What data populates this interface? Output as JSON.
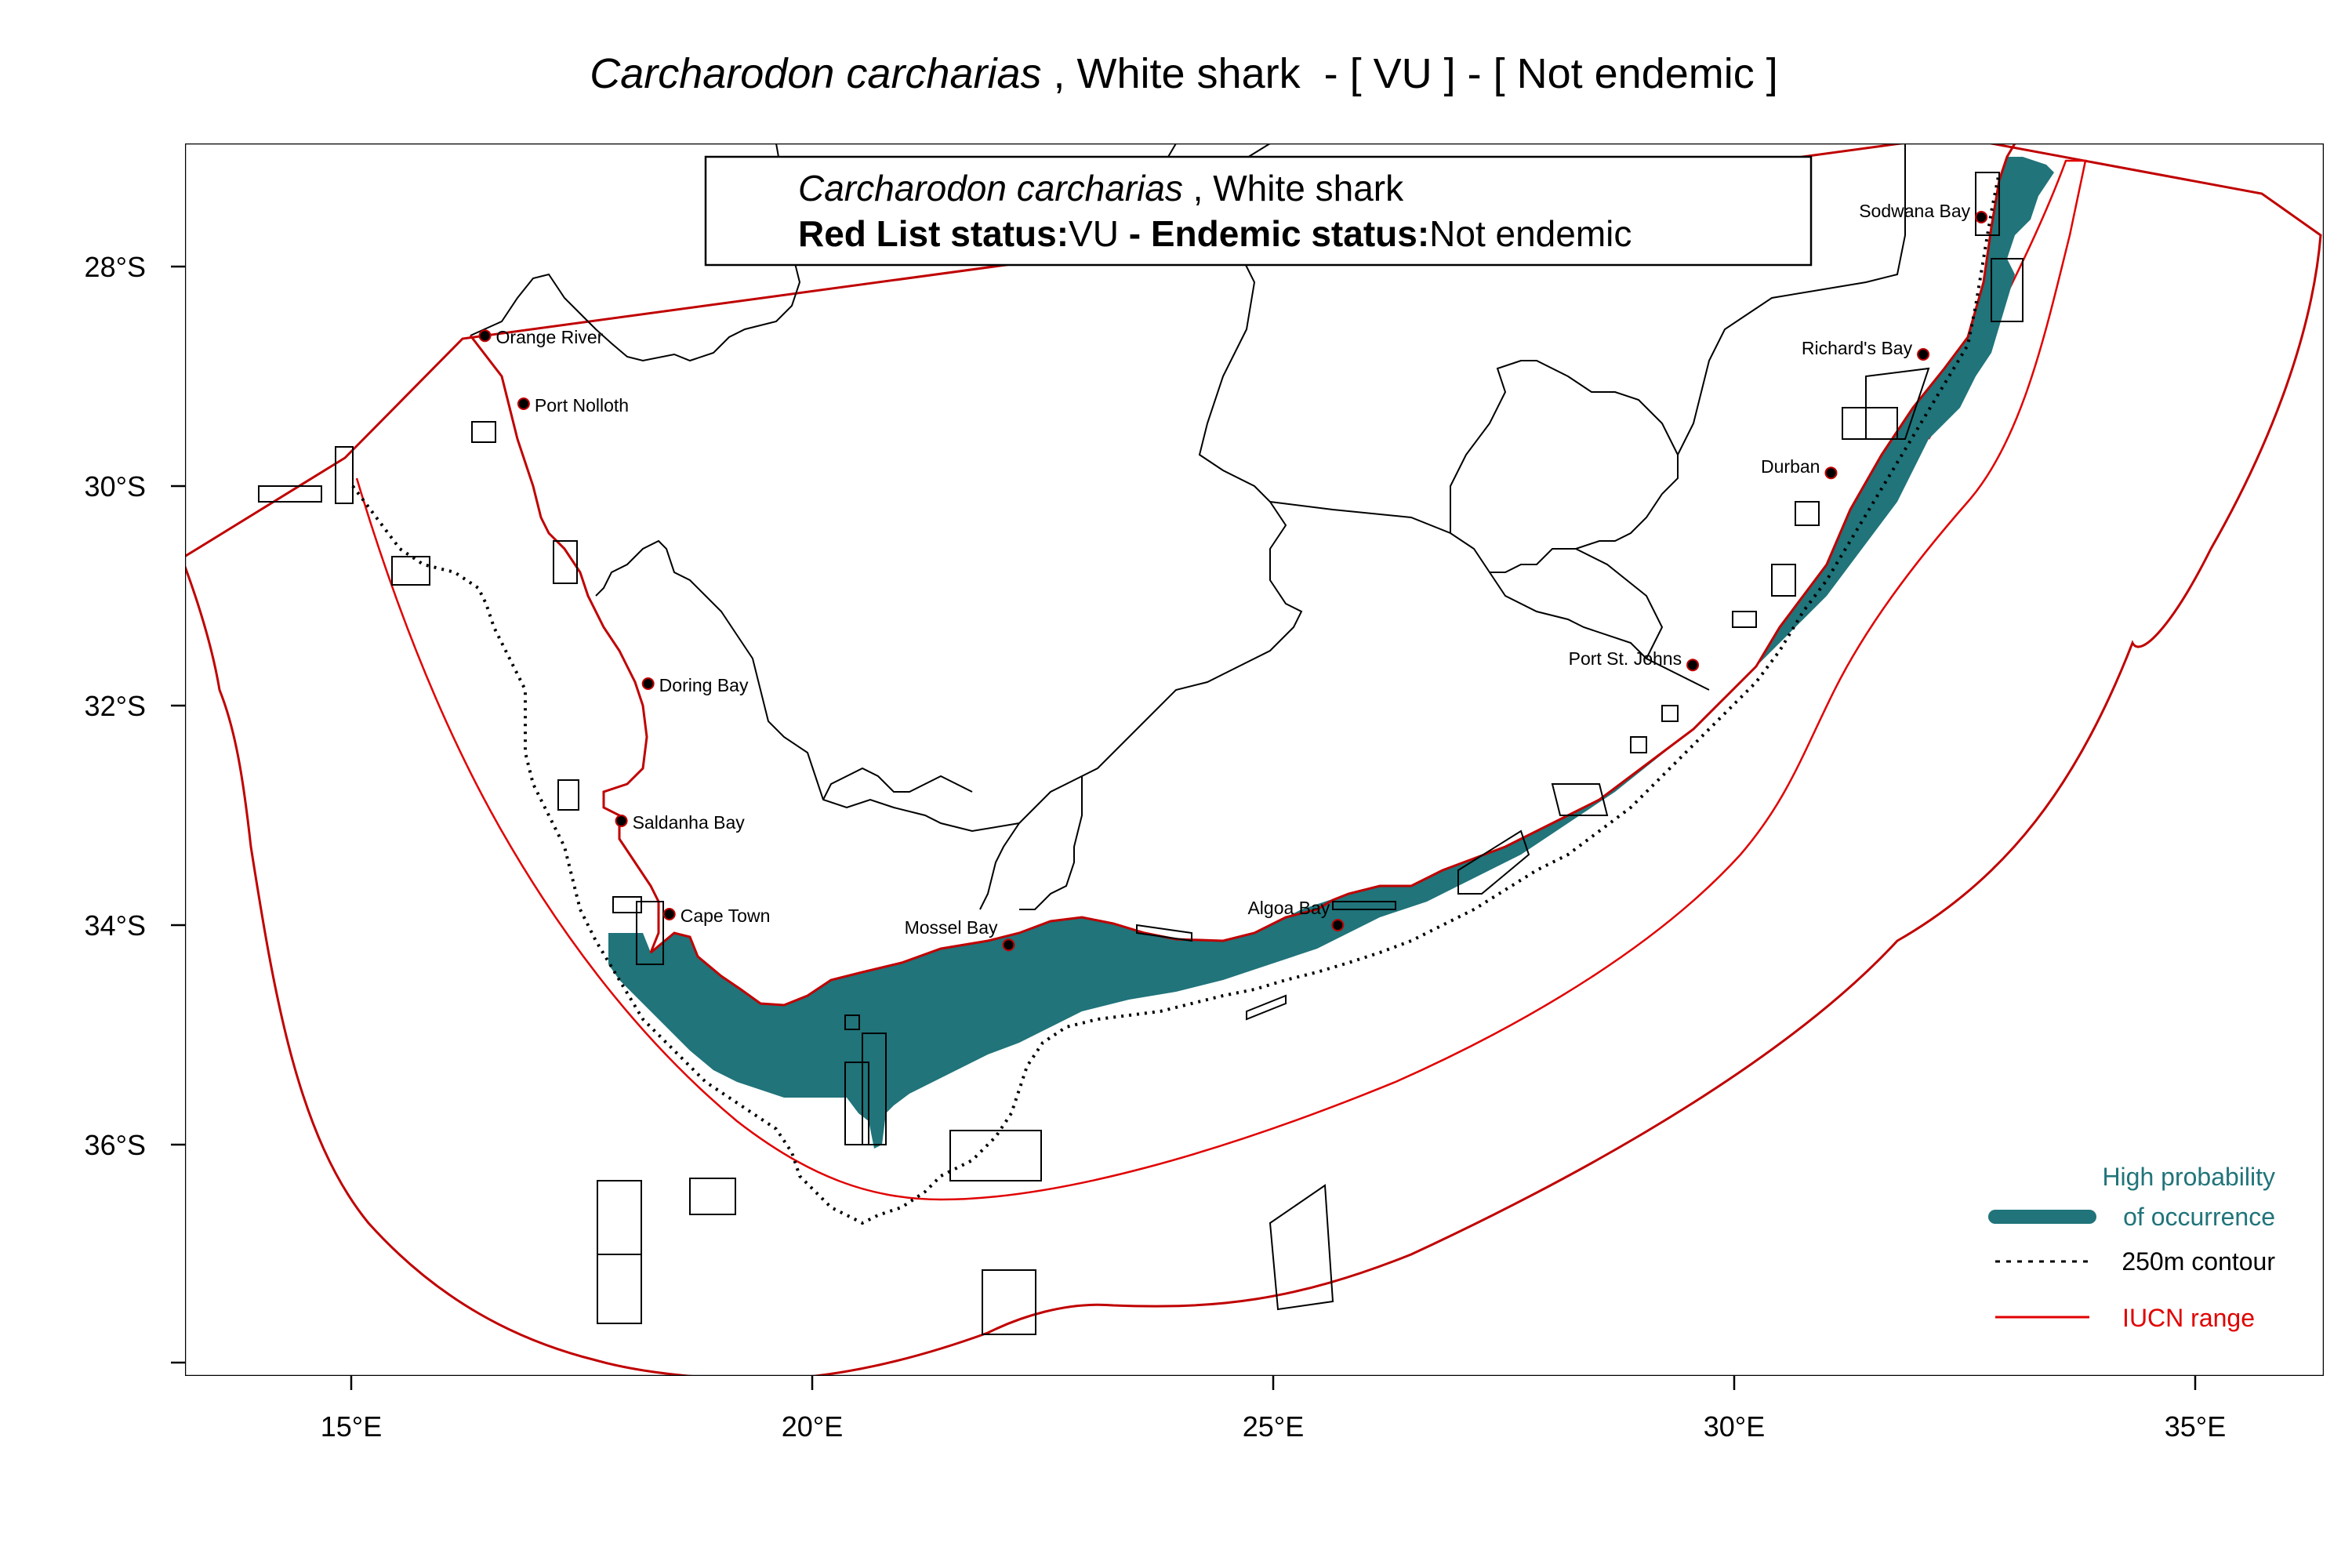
{
  "title": {
    "species": "Carcharodon carcharias",
    "rest": " , White shark  - [ VU ] - [ Not endemic ]"
  },
  "infobox": {
    "species": "Carcharodon carcharias",
    "common": " , White shark",
    "redlist_label": "Red List status:",
    "redlist_value": "VU",
    "endemic_label": " - Endemic status:",
    "endemic_value": "Not endemic"
  },
  "axes": {
    "lat_labels": [
      "28°S",
      "30°S",
      "32°S",
      "34°S",
      "36°S"
    ],
    "lon_labels": [
      "15°E",
      "20°E",
      "25°E",
      "30°E",
      "35°E"
    ]
  },
  "places": [
    {
      "name": "Orange River",
      "lon": 16.45,
      "lat": -28.63
    },
    {
      "name": "Port Nolloth",
      "lon": 16.87,
      "lat": -29.25
    },
    {
      "name": "Doring Bay",
      "lon": 18.22,
      "lat": -31.8
    },
    {
      "name": "Saldanha Bay",
      "lon": 17.93,
      "lat": -33.05
    },
    {
      "name": "Cape Town",
      "lon": 18.45,
      "lat": -33.9
    },
    {
      "name": "Mossel Bay",
      "lon": 22.13,
      "lat": -34.18
    },
    {
      "name": "Algoa Bay",
      "lon": 25.7,
      "lat": -34.0
    },
    {
      "name": "Port St. Johns",
      "lon": 29.55,
      "lat": -31.63
    },
    {
      "name": "Durban",
      "lon": 31.05,
      "lat": -29.88
    },
    {
      "name": "Richard's Bay",
      "lon": 32.05,
      "lat": -28.8
    },
    {
      "name": "Sodwana Bay",
      "lon": 32.68,
      "lat": -27.55
    }
  ],
  "legend": {
    "high_prob_line1": "High probability",
    "high_prob_line2": "of occurrence",
    "contour": "250m contour",
    "iucn": "IUCN range"
  },
  "colors": {
    "occurrence": "#20747A",
    "iucn": "#E00000",
    "coast_red": "#C00000",
    "text": "#000000"
  }
}
